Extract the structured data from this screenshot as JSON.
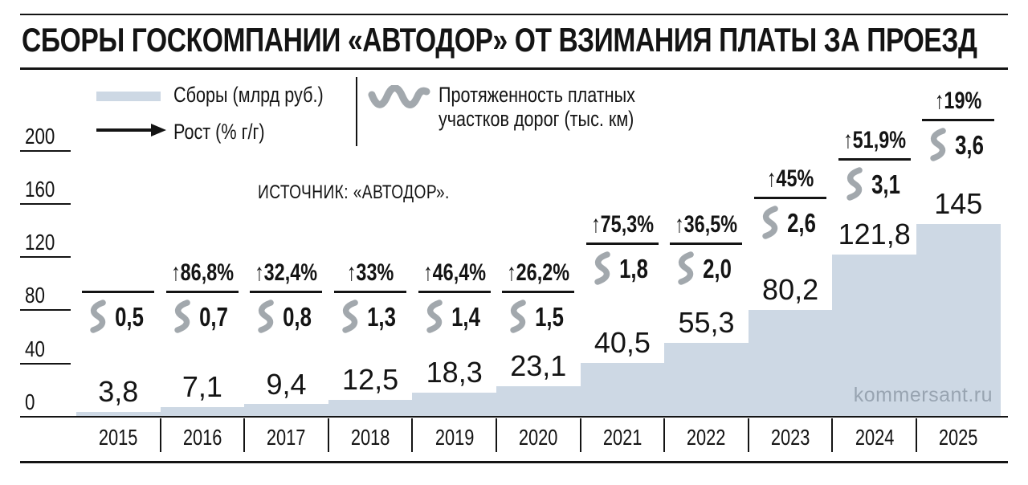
{
  "chart_data": {
    "type": "bar",
    "title": "СБОРЫ ГОСКОМПАНИИ «АВТОДОР» ОТ ВЗИМАНИЯ ПЛАТЫ ЗА ПРОЕЗД",
    "source": "ИСТОЧНИК: «АВТОДОР».",
    "watermark": "kommersant.ru",
    "categories": [
      "2015",
      "2016",
      "2017",
      "2018",
      "2019",
      "2020",
      "2021",
      "2022",
      "2023",
      "2024",
      "2025"
    ],
    "series": [
      {
        "name": "Сборы (млрд руб.)",
        "type": "bar",
        "values": [
          3.8,
          7.1,
          9.4,
          12.5,
          18.3,
          23.1,
          40.5,
          55.3,
          80.2,
          121.8,
          145
        ],
        "labels": [
          "3,8",
          "7,1",
          "9,4",
          "12,5",
          "18,3",
          "23,1",
          "40,5",
          "55,3",
          "80,2",
          "121,8",
          "145"
        ]
      },
      {
        "name": "Рост (% г/г)",
        "type": "annotation",
        "values": [
          null,
          86.8,
          32.4,
          33,
          46.4,
          26.2,
          75.3,
          36.5,
          45,
          51.9,
          19
        ],
        "labels": [
          null,
          "86,8%",
          "32,4%",
          "33%",
          "46,4%",
          "26,2%",
          "75,3%",
          "36,5%",
          "45%",
          "51,9%",
          "19%"
        ]
      },
      {
        "name": "Протяженность платных участков дорог (тыс. км)",
        "type": "annotation",
        "values": [
          0.5,
          0.7,
          0.8,
          1.3,
          1.4,
          1.5,
          1.8,
          2.0,
          2.6,
          3.1,
          3.6
        ],
        "labels": [
          "0,5",
          "0,7",
          "0,8",
          "1,3",
          "1,4",
          "1,5",
          "1,8",
          "2,0",
          "2,6",
          "3,1",
          "3,6"
        ]
      }
    ],
    "ylim": [
      0,
      200
    ],
    "y_ticks": [
      200,
      160,
      120,
      80,
      40,
      0
    ],
    "grid": false,
    "legend_position": "top-left"
  },
  "legend": {
    "length_line1": "Протяженность платных",
    "length_line2": "участков дорог (тыс. км)"
  },
  "icons": {
    "growth_arrow": "↑"
  },
  "colors": {
    "bar": "#cdd8e4",
    "wave": "#a2a8ad",
    "ink": "#141414",
    "watermark": "#98a4b1"
  }
}
